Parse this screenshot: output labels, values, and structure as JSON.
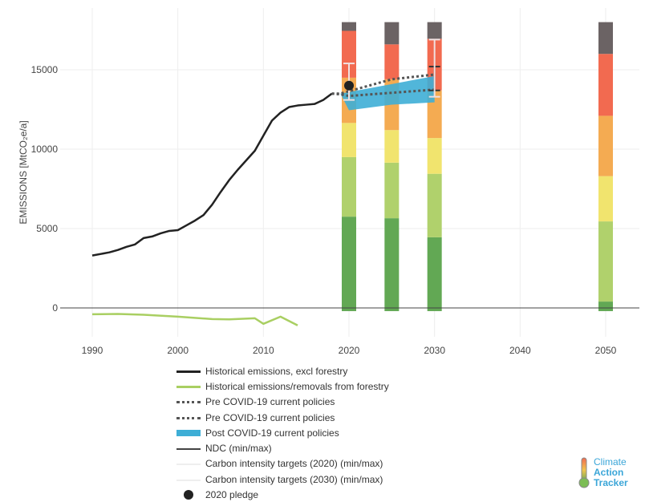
{
  "chart_data": {
    "type": "bar+line",
    "ylabel": "EMISSIONS [MtCO₂e/a]",
    "ylim": [
      -2000,
      19000
    ],
    "xlim": [
      1986,
      2054
    ],
    "yticks": [
      0,
      5000,
      10000,
      15000
    ],
    "xticks": [
      1990,
      2000,
      2010,
      2020,
      2030,
      2040,
      2050
    ],
    "colors": {
      "grey": "#6b6364",
      "red": "#f26a50",
      "orange": "#f4ab52",
      "yellow": "#f1e46e",
      "lightgreen": "#b0d16c",
      "green": "#62a854"
    },
    "bars": [
      {
        "x": 2020,
        "bounds": [
          -200,
          5750,
          9500,
          11650,
          14500,
          17450,
          18000
        ]
      },
      {
        "x": 2025,
        "bounds": [
          -200,
          5650,
          9150,
          11200,
          14400,
          16600,
          18000
        ]
      },
      {
        "x": 2030,
        "bounds": [
          -200,
          4450,
          8450,
          10700,
          13700,
          16950,
          18000
        ]
      },
      {
        "x": 2050,
        "bounds": [
          -200,
          400,
          5450,
          8300,
          12100,
          16000,
          18000
        ]
      }
    ],
    "series": [
      {
        "name": "Historical emissions, excl forestry",
        "color": "#222",
        "x": [
          1990,
          1992,
          1993,
          1994,
          1995,
          1996,
          1997,
          1998,
          1999,
          2000,
          2001,
          2002,
          2003,
          2004,
          2005,
          2006,
          2007,
          2008,
          2009,
          2010,
          2011,
          2012,
          2013,
          2014,
          2015,
          2016,
          2017,
          2018
        ],
        "y": [
          3300,
          3500,
          3650,
          3850,
          4000,
          4400,
          4500,
          4700,
          4850,
          4900,
          5200,
          5500,
          5850,
          6500,
          7300,
          8050,
          8700,
          9300,
          9900,
          10850,
          11800,
          12300,
          12650,
          12750,
          12800,
          12850,
          13100,
          13500
        ]
      },
      {
        "name": "Historical emissions/removals from forestry",
        "color": "#a9cf62",
        "x": [
          1990,
          1993,
          1996,
          2000,
          2004,
          2006,
          2009,
          2010,
          2012,
          2014
        ],
        "y": [
          -400,
          -380,
          -430,
          -550,
          -700,
          -720,
          -650,
          -1000,
          -550,
          -1100
        ]
      },
      {
        "name": "Pre COVID-19 current policies",
        "color": "#555",
        "dash": true,
        "x": [
          2018,
          2019,
          2020,
          2025,
          2030
        ],
        "y": [
          13500,
          13500,
          13650,
          14400,
          14700
        ]
      },
      {
        "name": "Pre COVID-19 current policies",
        "color": "#555",
        "dash": true,
        "x": [
          2018,
          2019,
          2020,
          2025,
          2030
        ],
        "y": [
          13500,
          13450,
          13350,
          13550,
          13750
        ]
      }
    ],
    "band": {
      "name": "Post COVID-19 current policies",
      "color": "#3eaed6",
      "x": [
        2019,
        2020,
        2025,
        2030
      ],
      "lo": [
        13500,
        12450,
        12800,
        12950
      ],
      "hi": [
        13500,
        13600,
        14100,
        14600
      ]
    },
    "errorbars": [
      {
        "name": "NDC (min/max)",
        "x": 2030,
        "lo": 13700,
        "hi": 15200,
        "color": "#333"
      },
      {
        "name": "Carbon intensity targets (2020) (min/max)",
        "x": 2020,
        "lo": 13100,
        "hi": 15400,
        "color": "#f0e0e0"
      },
      {
        "name": "Carbon intensity targets (2030) (min/max)",
        "x": 2030,
        "lo": 13300,
        "hi": 16900,
        "color": "#f0e0e0"
      }
    ],
    "pledge": {
      "name": "2020 pledge",
      "x": 2020,
      "y": 14000
    }
  },
  "legend": [
    "Historical emissions, excl forestry",
    "Historical emissions/removals from forestry",
    "Pre COVID-19 current policies",
    "Pre COVID-19 current policies",
    "Post COVID-19 current policies",
    "NDC (min/max)",
    "Carbon intensity targets (2020) (min/max)",
    "Carbon intensity targets (2030) (min/max)",
    "2020 pledge"
  ],
  "logo": {
    "l1": "Climate",
    "l2": "Action",
    "l3": "Tracker"
  }
}
